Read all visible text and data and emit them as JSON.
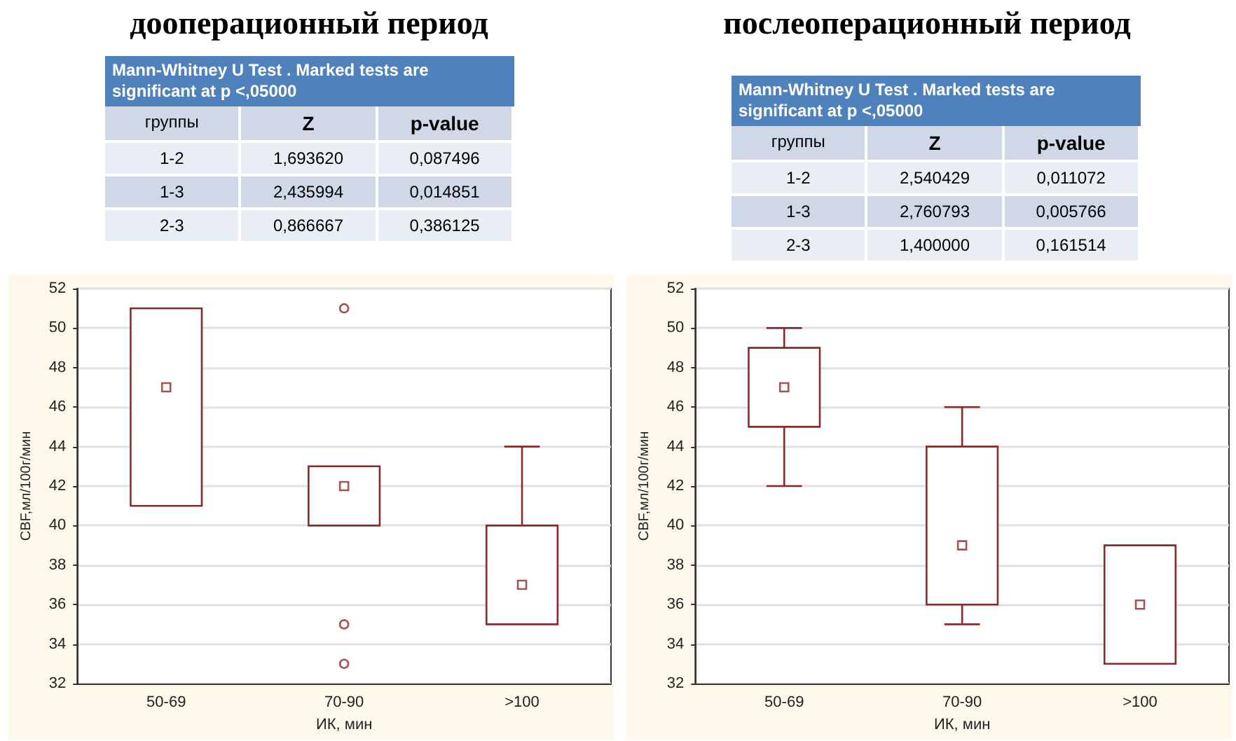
{
  "chart_data": [
    {
      "type": "box",
      "title": "дооперационный период",
      "xlabel": "ИК, мин",
      "ylabel": "CBF,мл/100г/мин",
      "categories": [
        "50-69",
        "70-90",
        ">100"
      ],
      "ylim": [
        32,
        52
      ],
      "yticks": [
        32,
        34,
        36,
        38,
        40,
        42,
        44,
        46,
        48,
        50,
        52
      ],
      "grid": "y",
      "marker": "square",
      "annotations": [
        "Mann-Whitney U Test . Marked tests are significant at p <,05000",
        "группы",
        "Z",
        "p-value",
        "1-2",
        "1,693620",
        "0,087496",
        "1-3",
        "2,435994",
        "0,014851",
        "2-3",
        "0,866667",
        "0,386125"
      ],
      "series": [
        {
          "color": "#8b2a2a",
          "boxes": [
            {
              "low": 41,
              "q1": 41,
              "median": 47,
              "q3": 51,
              "high": 51
            },
            {
              "low": 40,
              "q1": 40,
              "median": 42,
              "q3": 43,
              "high": 43,
              "outliers": [
                51,
                35,
                33
              ]
            },
            {
              "low": 35,
              "q1": 35,
              "median": 37,
              "q3": 40,
              "high": 44
            }
          ]
        }
      ]
    },
    {
      "type": "box",
      "title": "послеоперационный период",
      "xlabel": "ИК, мин",
      "ylabel": "CBF,мл/100г/мин",
      "categories": [
        "50-69",
        "70-90",
        ">100"
      ],
      "ylim": [
        32,
        52
      ],
      "yticks": [
        32,
        34,
        36,
        38,
        40,
        42,
        44,
        46,
        48,
        50,
        52
      ],
      "grid": "y",
      "marker": "square",
      "annotations": [
        "Mann-Whitney U Test . Marked tests are significant at p <,05000",
        "группы",
        "Z",
        "p-value",
        "1-2",
        "2,540429",
        "0,011072",
        "1-3",
        "2,760793",
        "0,005766",
        "2-3",
        "1,400000",
        "0,161514"
      ],
      "series": [
        {
          "color": "#8b2a2a",
          "boxes": [
            {
              "low": 42,
              "q1": 45,
              "median": 47,
              "q3": 49,
              "high": 50
            },
            {
              "low": 35,
              "q1": 36,
              "median": 39,
              "q3": 44,
              "high": 46
            },
            {
              "low": 33,
              "q1": 33,
              "median": 36,
              "q3": 39,
              "high": 39
            }
          ]
        }
      ]
    }
  ]
}
